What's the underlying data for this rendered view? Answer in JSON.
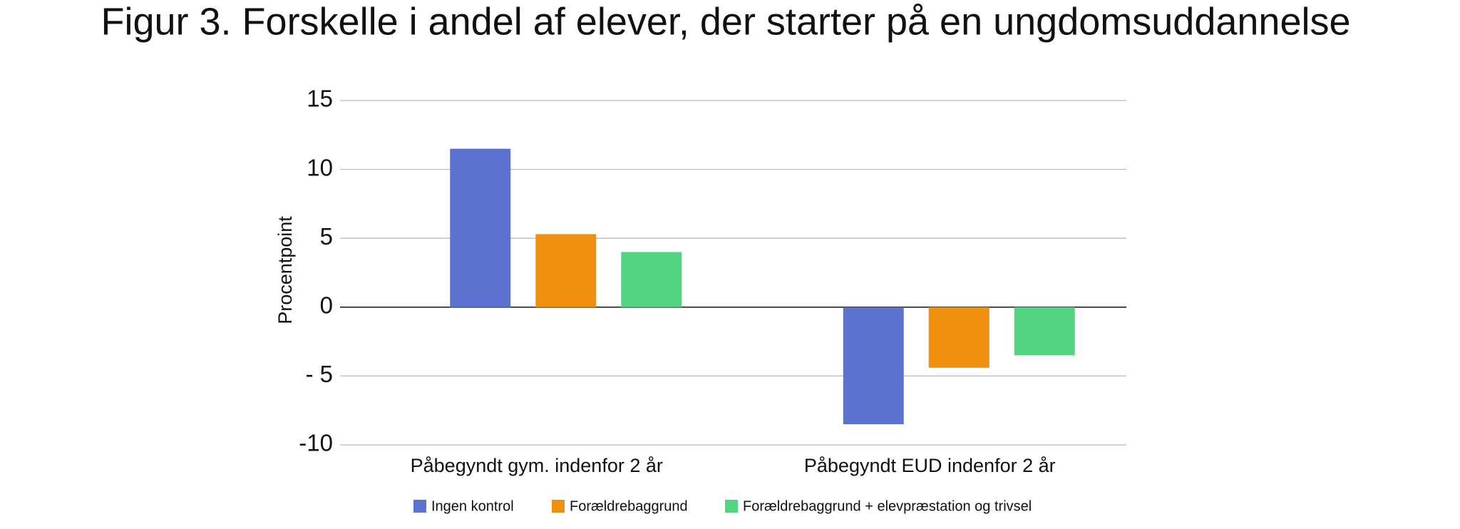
{
  "chart_data": {
    "type": "bar",
    "title": "Figur 3. Forskelle i andel af elever, der starter på en ungdomsuddannelse",
    "y_label": "Procentpoint",
    "categories": [
      "Påbegyndt gym. indenfor 2 år",
      "Påbegyndt EUD indenfor 2 år"
    ],
    "series": [
      {
        "name": "Ingen kontrol",
        "color": "#5b72d1",
        "values": [
          11.5,
          -8.5
        ]
      },
      {
        "name": "Forældrebaggrund",
        "color": "#f0900f",
        "values": [
          5.3,
          -4.4
        ]
      },
      {
        "name": "Forældrebaggrund + elevpræstation og trivsel",
        "color": "#52d580",
        "values": [
          4.0,
          -3.5
        ]
      }
    ],
    "ylim": [
      -10,
      15
    ],
    "yticks": [
      {
        "value": -10,
        "label": "-10"
      },
      {
        "value": -5,
        "label": "- 5"
      },
      0,
      5,
      10,
      15
    ],
    "grid": true,
    "legend": "bottom"
  }
}
